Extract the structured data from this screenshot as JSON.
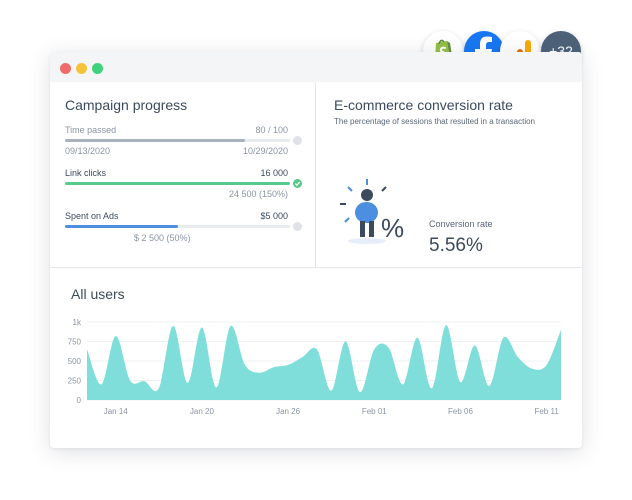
{
  "integrations": {
    "more_count": "+32",
    "icons": [
      "shopify-icon",
      "facebook-icon",
      "google-analytics-icon"
    ]
  },
  "campaign": {
    "title": "Campaign progress",
    "time": {
      "label": "Time passed",
      "value": "80 / 100",
      "progress": 0.8,
      "start_date": "09/13/2020",
      "end_date": "10/29/2020",
      "color": "#a9b1bd"
    },
    "clicks": {
      "label": "Link clicks",
      "value": "16 000",
      "goal": "24 500 (150%)",
      "progress": 1.0,
      "color": "#57c98b"
    },
    "spent": {
      "label": "Spent on Ads",
      "value": "$5 000",
      "goal": "$ 2 500 (50%)",
      "progress": 0.5,
      "color": "#4c8fe0"
    }
  },
  "conversion": {
    "title": "E-commerce conversion rate",
    "subtitle": "The percentage of sessions that resulted in a transaction",
    "metric_label": "Conversion rate",
    "metric_value": "5.56%",
    "percent_glyph": "%"
  },
  "users": {
    "title": "All users",
    "chart_data": {
      "type": "area",
      "color": "#7fded9",
      "ylim": [
        0,
        1000
      ],
      "yticks": [
        "0",
        "250",
        "500",
        "750",
        "1k"
      ],
      "xticks": [
        {
          "label": "Jan 14",
          "x": 2
        },
        {
          "label": "Jan 20",
          "x": 8
        },
        {
          "label": "Jan 26",
          "x": 14
        },
        {
          "label": "Feb 01",
          "x": 20
        },
        {
          "label": "Feb 06",
          "x": 26
        },
        {
          "label": "Feb 11",
          "x": 32
        }
      ],
      "x": [
        0,
        1,
        2,
        3,
        4,
        5,
        6,
        7,
        8,
        9,
        10,
        11,
        12,
        13,
        14,
        15,
        16,
        17,
        18,
        19,
        20,
        21,
        22,
        23,
        24,
        25,
        26,
        27,
        28,
        29,
        30,
        31,
        32,
        33
      ],
      "values": [
        650,
        200,
        820,
        250,
        240,
        150,
        950,
        220,
        930,
        160,
        950,
        450,
        350,
        420,
        450,
        550,
        650,
        120,
        750,
        100,
        650,
        670,
        200,
        800,
        150,
        960,
        230,
        700,
        180,
        800,
        550,
        400,
        450,
        900
      ]
    }
  }
}
